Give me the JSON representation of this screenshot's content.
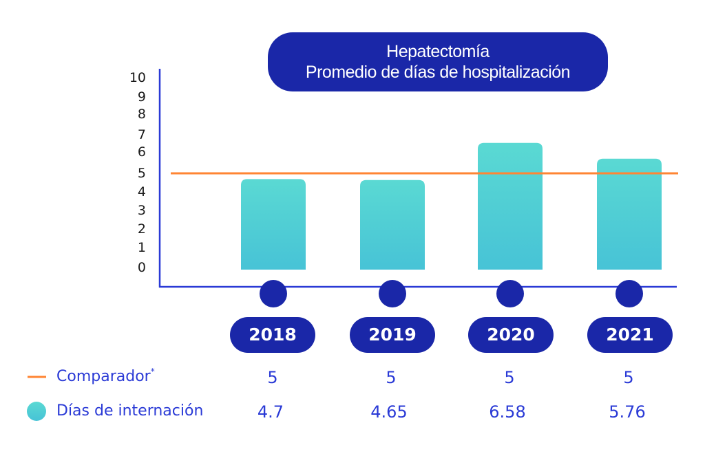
{
  "chart_data": {
    "type": "bar",
    "title": "Hepatectomía",
    "subtitle": "Promedio de días de hospitalización",
    "xlabel": "",
    "ylabel": "",
    "ylim": [
      0,
      10
    ],
    "yticks": [
      "0",
      "1",
      "2",
      "3",
      "4",
      "5",
      "6",
      "7",
      "8",
      "9",
      "10"
    ],
    "categories": [
      "2018",
      "2019",
      "2020",
      "2021"
    ],
    "grid": false,
    "series": [
      {
        "name": "Días de internación",
        "type": "bar",
        "values": [
          4.7,
          4.65,
          6.58,
          5.76
        ],
        "value_labels": [
          "4.7",
          "4.65",
          "6.58",
          "5.76"
        ],
        "color": "#4ec9d6"
      },
      {
        "name": "Comparador",
        "name_suffix": "*",
        "type": "line",
        "values": [
          5,
          5,
          5,
          5
        ],
        "value_labels": [
          "5",
          "5",
          "5",
          "5"
        ],
        "color": "#ff8533"
      }
    ],
    "legend": {
      "placement": "bottom-left",
      "entries": [
        {
          "label": "Comparador",
          "suffix": "*",
          "marker": "line",
          "color": "#ff8533"
        },
        {
          "label": "Días de internación",
          "suffix": "",
          "marker": "circle",
          "color": "#4ec9d6"
        }
      ]
    }
  },
  "colors": {
    "accent": "#1a27a8",
    "axis": "#2a3ad6",
    "text_blue": "#2a3ad6",
    "bar_top": "#5ad9d3",
    "bar_bottom": "#47c3d6",
    "comparator": "#ff8533"
  }
}
